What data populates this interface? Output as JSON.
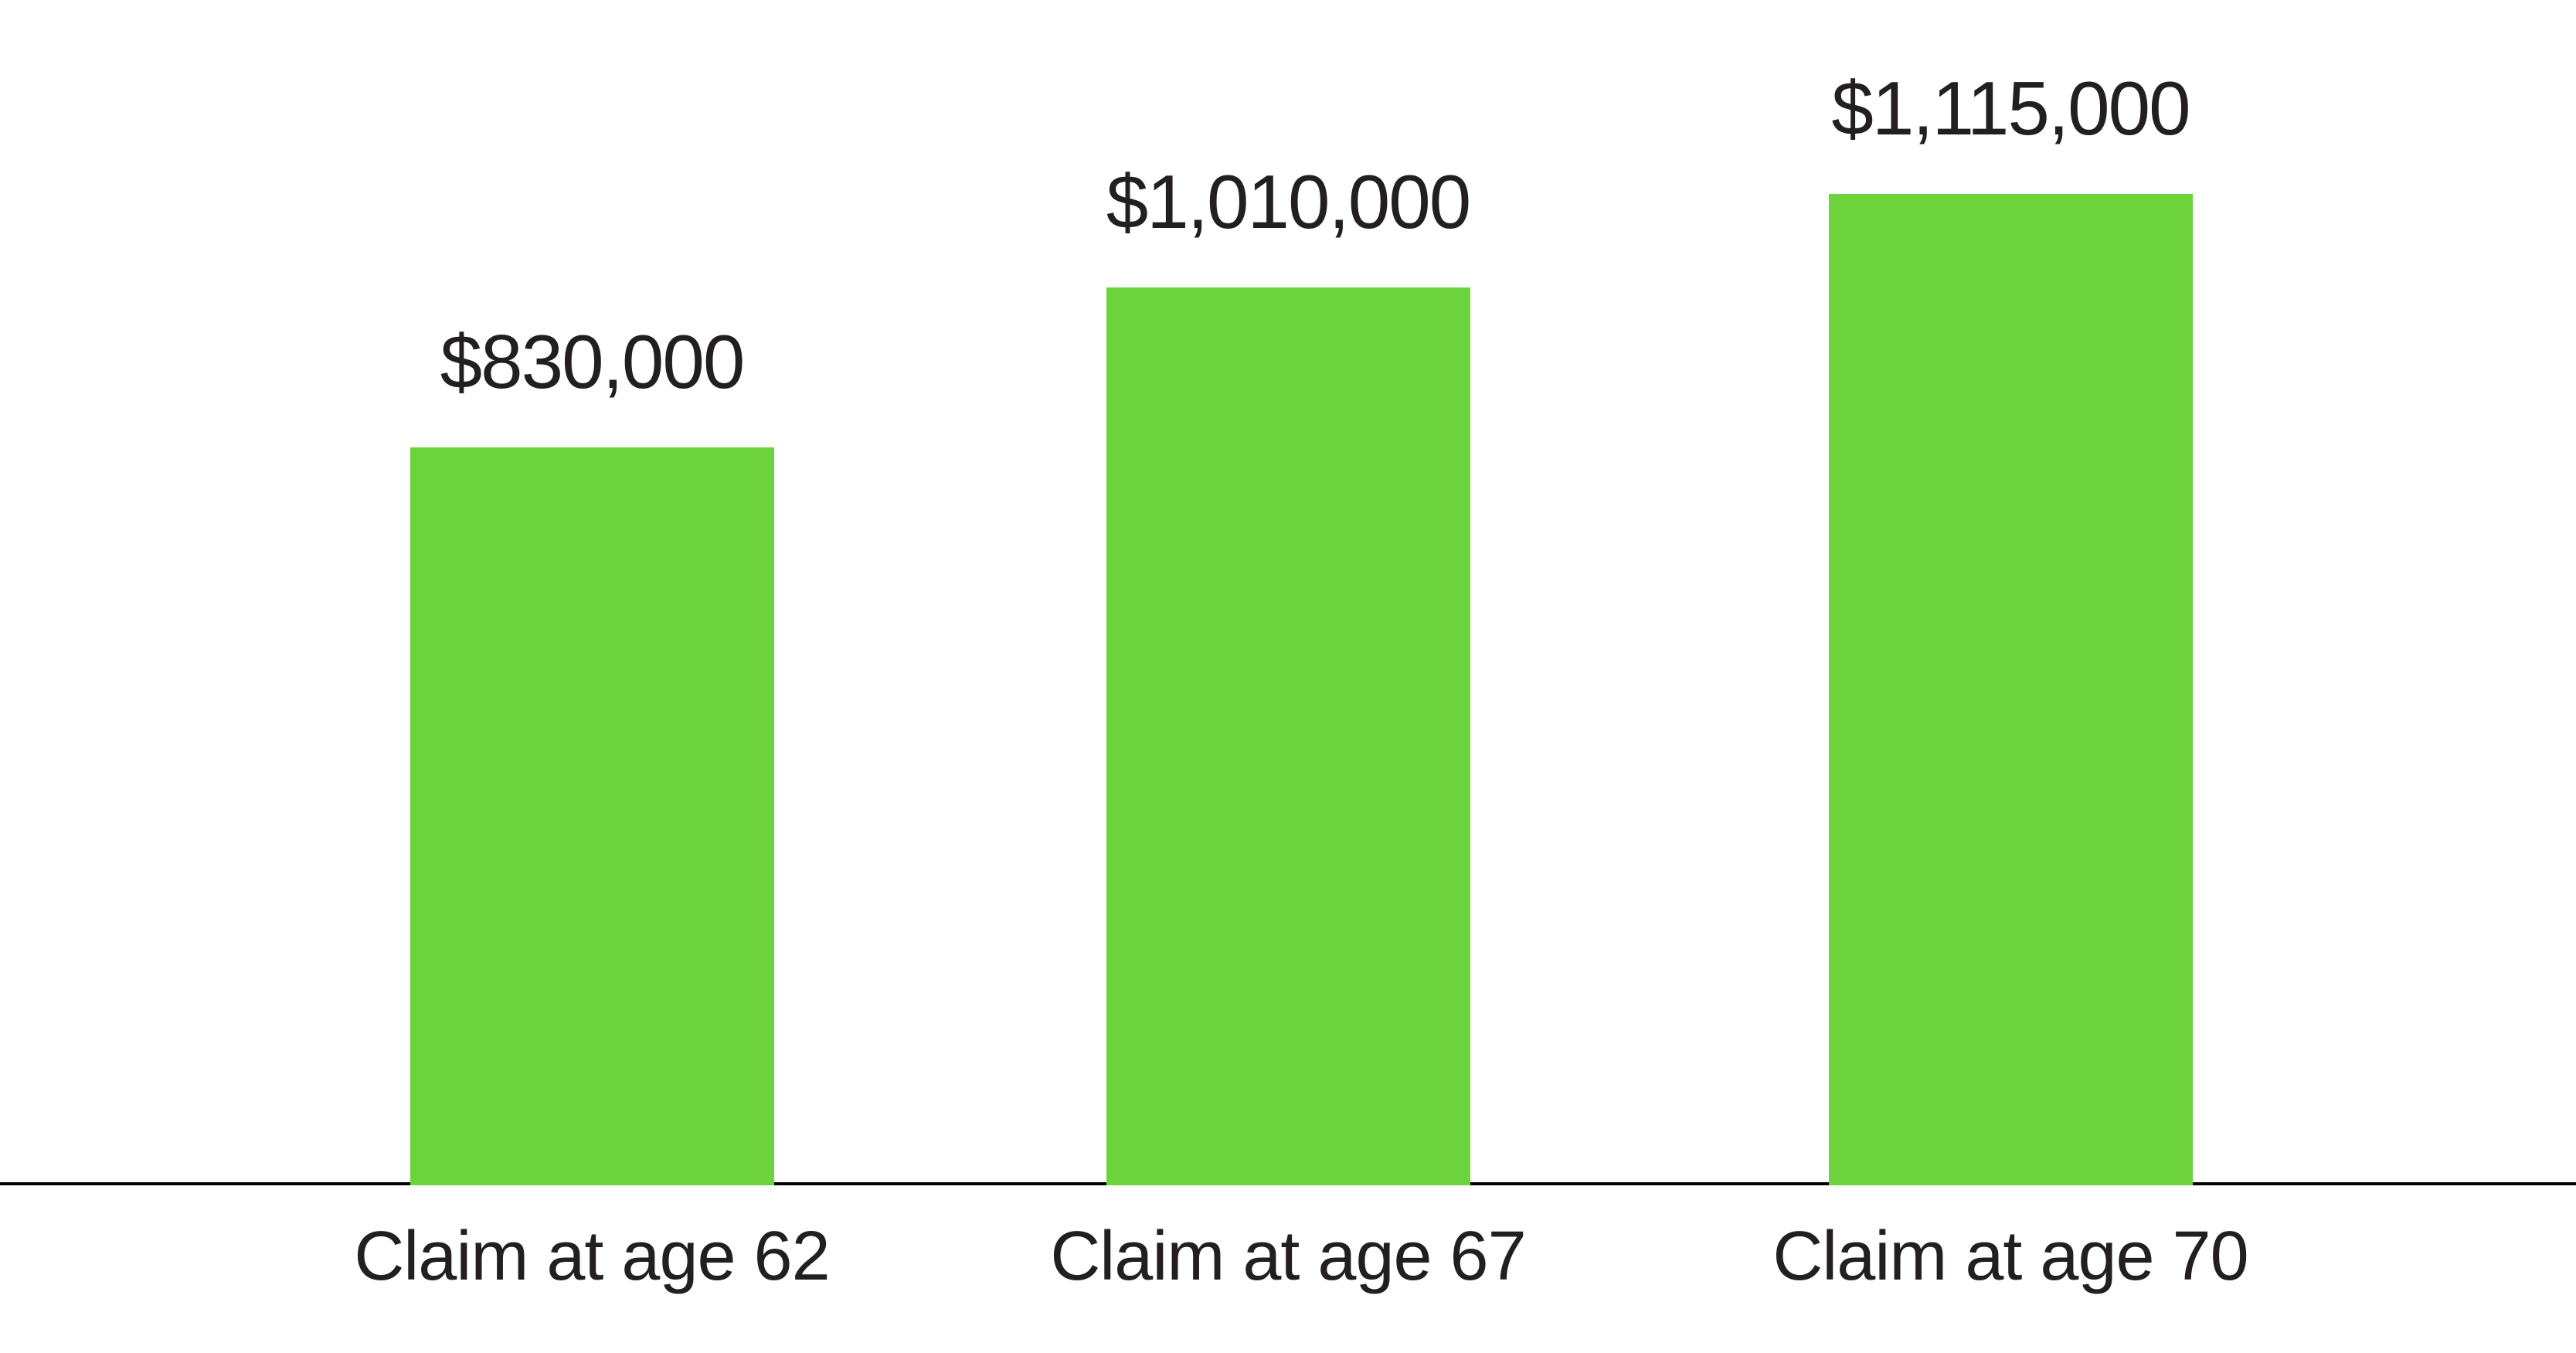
{
  "chart_data": {
    "type": "bar",
    "categories": [
      "Claim at age 62",
      "Claim at age 67",
      "Claim at age 70"
    ],
    "values": [
      830000,
      1010000,
      1115000
    ],
    "value_labels": [
      "$830,000",
      "$1,010,000",
      "$1,115,000"
    ],
    "title": "",
    "xlabel": "",
    "ylabel": "",
    "ylim": [
      0,
      1200000
    ],
    "grid": false,
    "legend": false,
    "bar_color": "#6CD33C",
    "axis_line_color": "#000000",
    "label_color": "#231F20",
    "background": "#FFFFFF"
  }
}
